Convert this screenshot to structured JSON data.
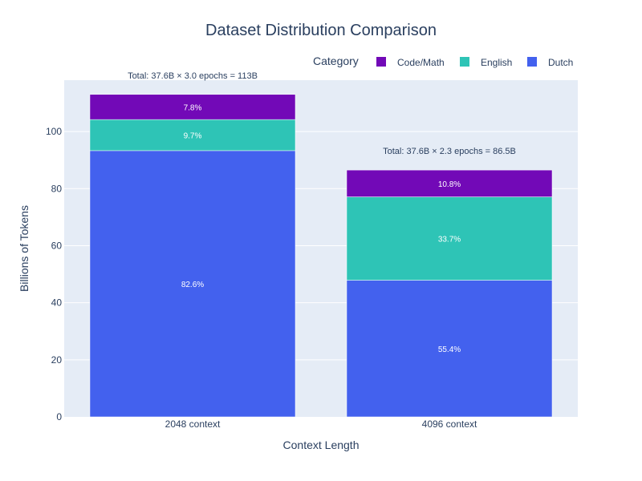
{
  "chart_data": {
    "type": "bar",
    "stacked": true,
    "title": "Dataset Distribution Comparison",
    "xlabel": "Context Length",
    "ylabel": "Billions of Tokens",
    "categories": [
      "2048 context",
      "4096 context"
    ],
    "ylim": [
      0,
      118
    ],
    "yticks": [
      0,
      20,
      40,
      60,
      80,
      100
    ],
    "grid": true,
    "legend": {
      "title": "Category",
      "placement": "top-right",
      "order": [
        "Code/Math",
        "English",
        "Dutch"
      ]
    },
    "series": [
      {
        "name": "Dutch",
        "color": "#4361ee",
        "values": [
          93.3,
          47.9
        ],
        "labels": [
          "82.6%",
          "55.4%"
        ]
      },
      {
        "name": "English",
        "color": "#2ec4b6",
        "values": [
          10.9,
          29.2
        ],
        "labels": [
          "9.7%",
          "33.7%"
        ]
      },
      {
        "name": "Code/Math",
        "color": "#7209b7",
        "values": [
          8.8,
          9.4
        ],
        "labels": [
          "7.8%",
          "10.8%"
        ]
      }
    ],
    "annotations": [
      "Total: 37.6B × 3.0 epochs = 113B",
      "Total: 37.6B × 2.3 epochs = 86.5B"
    ]
  }
}
